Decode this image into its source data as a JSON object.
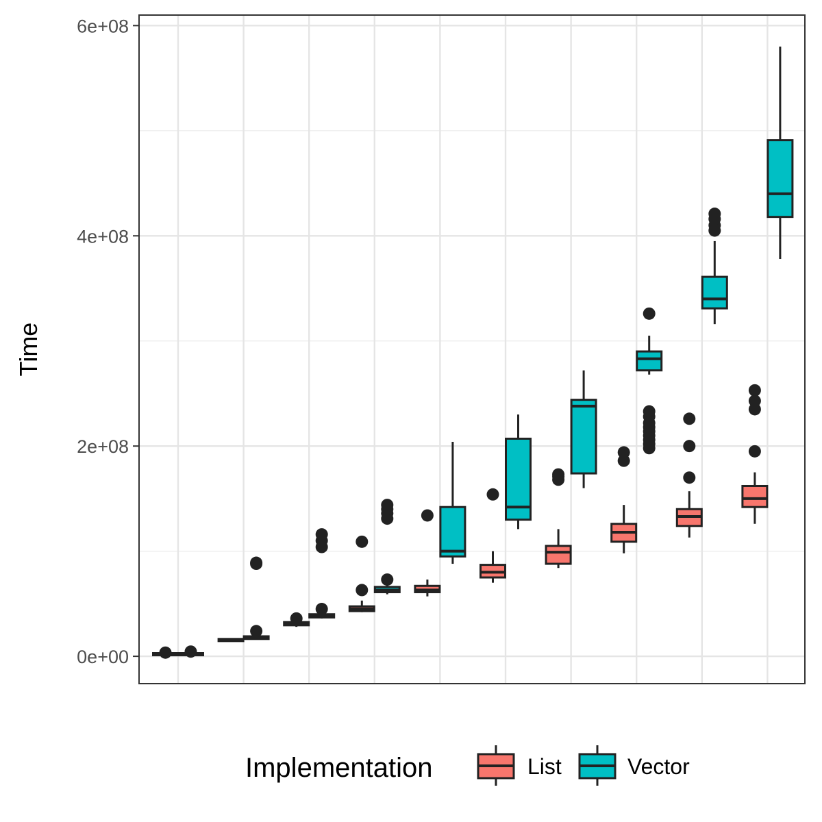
{
  "chart_data": {
    "type": "box",
    "ylabel": "Time",
    "xlabel": "",
    "ylim": [
      -26000000.0,
      610000000.0
    ],
    "yticks": [
      0,
      200000000,
      400000000,
      600000000
    ],
    "ytick_labels": [
      "0e+00",
      "2e+08",
      "4e+08",
      "6e+08"
    ],
    "grid": true,
    "legend": {
      "title": "Implementation",
      "position": "bottom",
      "entries": [
        {
          "name": "List",
          "color": "#F8766D"
        },
        {
          "name": "Vector",
          "color": "#00BFC4"
        }
      ]
    },
    "num_groups": 10,
    "x_tick_labels_visible": false,
    "series": [
      {
        "name": "List",
        "color": "#F8766D",
        "boxes": [
          {
            "q1": 1000000,
            "median": 2000000,
            "q3": 3000000,
            "whisker_low": 500000,
            "whisker_high": 4000000,
            "outliers": [
              3500000
            ]
          },
          {
            "q1": 14500000,
            "median": 15500000,
            "q3": 16500000,
            "whisker_low": 14000000,
            "whisker_high": 17000000,
            "outliers": []
          },
          {
            "q1": 29500000,
            "median": 31000000,
            "q3": 32500000,
            "whisker_low": 28000000,
            "whisker_high": 34000000,
            "outliers": [
              36000000
            ]
          },
          {
            "q1": 43000000,
            "median": 45000000,
            "q3": 47500000,
            "whisker_low": 42000000,
            "whisker_high": 53000000,
            "outliers": [
              63000000,
              109000000
            ]
          },
          {
            "q1": 61000000,
            "median": 63000000,
            "q3": 67000000,
            "whisker_low": 57000000,
            "whisker_high": 73000000,
            "outliers": [
              134000000
            ]
          },
          {
            "q1": 75000000,
            "median": 80000000,
            "q3": 87000000,
            "whisker_low": 70000000,
            "whisker_high": 100000000,
            "outliers": [
              154000000
            ]
          },
          {
            "q1": 88000000,
            "median": 99000000,
            "q3": 105000000,
            "whisker_low": 84000000,
            "whisker_high": 121000000,
            "outliers": [
              168000000,
              171000000,
              173000000
            ]
          },
          {
            "q1": 109000000,
            "median": 118000000,
            "q3": 126000000,
            "whisker_low": 98000000,
            "whisker_high": 144000000,
            "outliers": [
              186000000,
              194000000
            ]
          },
          {
            "q1": 124000000,
            "median": 133000000,
            "q3": 140000000,
            "whisker_low": 113000000,
            "whisker_high": 157000000,
            "outliers": [
              170000000,
              200000000,
              226000000
            ]
          },
          {
            "q1": 142000000,
            "median": 150000000,
            "q3": 162000000,
            "whisker_low": 126000000,
            "whisker_high": 175000000,
            "outliers": [
              195000000,
              235000000,
              243000000,
              253000000
            ]
          }
        ]
      },
      {
        "name": "Vector",
        "color": "#00BFC4",
        "boxes": [
          {
            "q1": 1000000,
            "median": 2000000,
            "q3": 3000000,
            "whisker_low": 500000,
            "whisker_high": 4000000,
            "outliers": [
              4500000
            ]
          },
          {
            "q1": 16500000,
            "median": 17500000,
            "q3": 19000000,
            "whisker_low": 16000000,
            "whisker_high": 20000000,
            "outliers": [
              24000000,
              88000000,
              89000000
            ]
          },
          {
            "q1": 37000000,
            "median": 38000000,
            "q3": 40000000,
            "whisker_low": 36000000,
            "whisker_high": 42000000,
            "outliers": [
              45000000,
              104000000,
              110000000,
              116000000
            ]
          },
          {
            "q1": 61000000,
            "median": 63000000,
            "q3": 66000000,
            "whisker_low": 59000000,
            "whisker_high": 69000000,
            "outliers": [
              73000000,
              131000000,
              136000000,
              140000000,
              144000000
            ]
          },
          {
            "q1": 95000000,
            "median": 100000000,
            "q3": 142000000,
            "whisker_low": 88000000,
            "whisker_high": 204000000,
            "outliers": []
          },
          {
            "q1": 130000000,
            "median": 142000000,
            "q3": 207000000,
            "whisker_low": 121000000,
            "whisker_high": 230000000,
            "outliers": []
          },
          {
            "q1": 174000000,
            "median": 238000000,
            "q3": 244000000,
            "whisker_low": 160000000,
            "whisker_high": 272000000,
            "outliers": []
          },
          {
            "q1": 272000000,
            "median": 283000000,
            "q3": 290000000,
            "whisker_low": 268000000,
            "whisker_high": 305000000,
            "outliers": [
              198000000,
              202000000,
              206000000,
              210000000,
              214000000,
              218000000,
              222000000,
              228000000,
              233000000,
              326000000
            ]
          },
          {
            "q1": 331000000,
            "median": 340000000,
            "q3": 361000000,
            "whisker_low": 316000000,
            "whisker_high": 395000000,
            "outliers": [
              405000000,
              410000000,
              416000000,
              421000000
            ]
          },
          {
            "q1": 418000000,
            "median": 440000000,
            "q3": 491000000,
            "whisker_low": 378000000,
            "whisker_high": 580000000,
            "outliers": []
          }
        ]
      }
    ]
  }
}
